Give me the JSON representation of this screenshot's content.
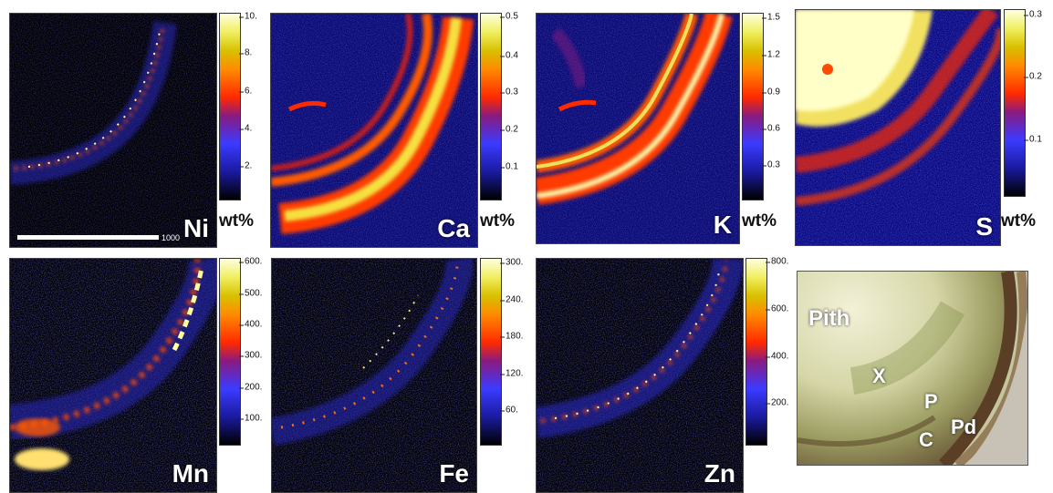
{
  "panels": [
    {
      "element": "Ni",
      "unit": "wt%",
      "ticks": [
        "10.",
        "8.",
        "6.",
        "4.",
        "2."
      ]
    },
    {
      "element": "Ca",
      "unit": "wt%",
      "ticks": [
        "0.5",
        "0.4",
        "0.3",
        "0.2",
        "0.1"
      ]
    },
    {
      "element": "K",
      "unit": "wt%",
      "ticks": [
        "1.5",
        "1.2",
        "0.9",
        "0.6",
        "0.3"
      ]
    },
    {
      "element": "S",
      "unit": "wt%",
      "ticks": [
        "0.3",
        "0.2",
        "0.1"
      ]
    },
    {
      "element": "Mn",
      "unit": "",
      "ticks": [
        "600.",
        "500.",
        "400.",
        "300.",
        "200.",
        "100."
      ]
    },
    {
      "element": "Fe",
      "unit": "",
      "ticks": [
        "300.",
        "240.",
        "180.",
        "120.",
        "60."
      ]
    },
    {
      "element": "Zn",
      "unit": "",
      "ticks": [
        "800.",
        "600.",
        "400.",
        "200."
      ]
    }
  ],
  "scalebar_label": "1000",
  "photo_labels": {
    "pith": "Pith",
    "x": "X",
    "p": "P",
    "c": "C",
    "pd": "Pd"
  },
  "colors": {
    "colormap": [
      "#000000",
      "#1a1aa0",
      "#3b3bff",
      "#c02040",
      "#ff2a00",
      "#ff8a00",
      "#d8c000",
      "#f0ef60",
      "#ffffe0"
    ]
  }
}
